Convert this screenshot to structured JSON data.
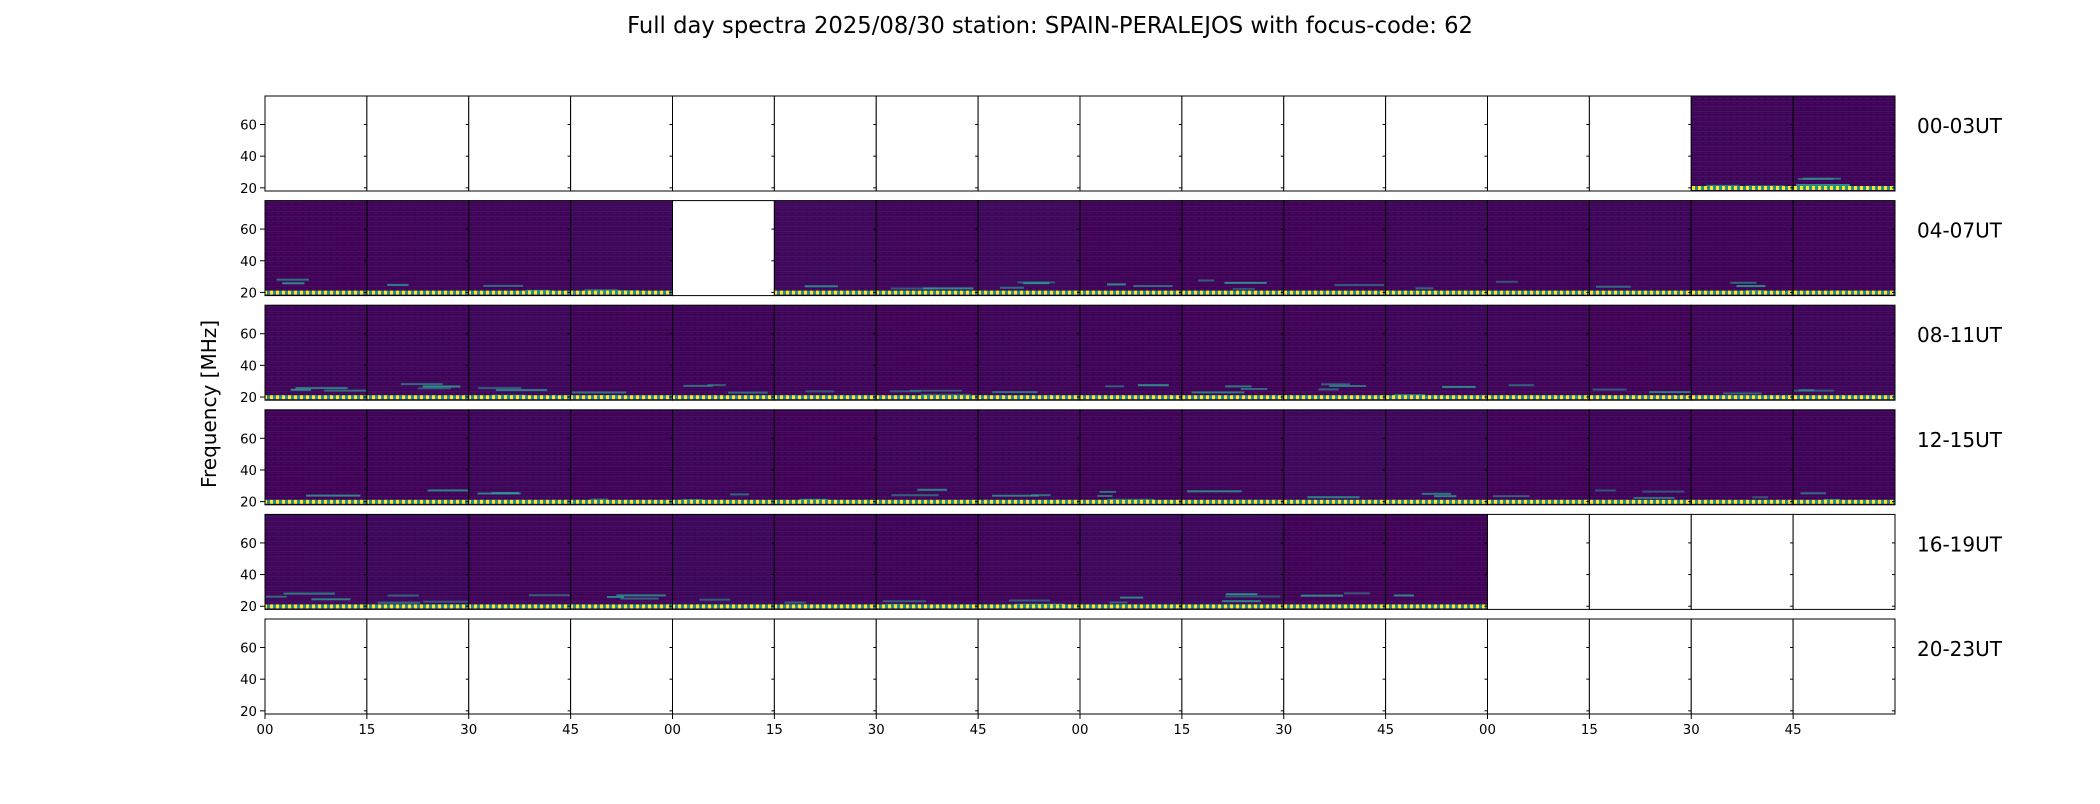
{
  "chart_data": {
    "type": "heatmap",
    "title": "Full day spectra 2025/08/30 station: SPAIN-PERALEJOS with focus-code: 62",
    "xlabel": "",
    "ylabel": "Frequency [MHz]",
    "yticks": [
      20,
      40,
      60
    ],
    "ylim": [
      18,
      78
    ],
    "xticks": [
      "00",
      "15",
      "30",
      "45",
      "00",
      "15",
      "30",
      "45",
      "00",
      "15",
      "30",
      "45",
      "00",
      "15",
      "30",
      "45"
    ],
    "panels_per_row": 16,
    "panel_minutes": 15,
    "rows": [
      {
        "label": "00-03UT",
        "has_data": [
          false,
          false,
          false,
          false,
          false,
          false,
          false,
          false,
          false,
          false,
          false,
          false,
          false,
          false,
          true,
          true
        ]
      },
      {
        "label": "04-07UT",
        "has_data": [
          true,
          true,
          true,
          true,
          false,
          true,
          true,
          true,
          true,
          true,
          true,
          true,
          true,
          true,
          true,
          true
        ]
      },
      {
        "label": "08-11UT",
        "has_data": [
          true,
          true,
          true,
          true,
          true,
          true,
          true,
          true,
          true,
          true,
          true,
          true,
          true,
          true,
          true,
          true
        ]
      },
      {
        "label": "12-15UT",
        "has_data": [
          true,
          true,
          true,
          true,
          true,
          true,
          true,
          true,
          true,
          true,
          true,
          true,
          true,
          true,
          true,
          true
        ]
      },
      {
        "label": "16-19UT",
        "has_data": [
          true,
          true,
          true,
          true,
          true,
          true,
          true,
          true,
          true,
          true,
          true,
          true,
          false,
          false,
          false,
          false
        ]
      },
      {
        "label": "20-23UT",
        "has_data": [
          false,
          false,
          false,
          false,
          false,
          false,
          false,
          false,
          false,
          false,
          false,
          false,
          false,
          false,
          false,
          false
        ]
      }
    ],
    "colormap": "viridis",
    "colors": {
      "background": "#440154",
      "baseline": "#3b1a6b",
      "emission": "#2a9d8f",
      "band_marker": "#fde725",
      "empty": "#ffffff"
    }
  }
}
